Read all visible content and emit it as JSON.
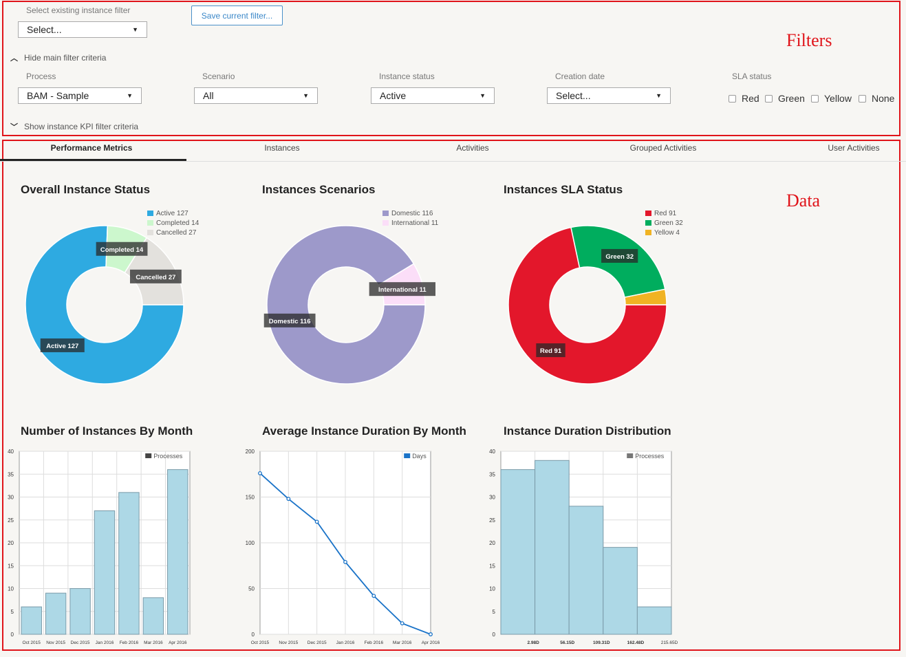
{
  "filters": {
    "existing_label": "Select existing instance filter",
    "existing_value": "Select...",
    "save_button": "Save current filter...",
    "hide_main": "Hide main filter criteria",
    "process_label": "Process",
    "process_value": "BAM - Sample",
    "scenario_label": "Scenario",
    "scenario_value": "All",
    "status_label": "Instance status",
    "status_value": "Active",
    "date_label": "Creation date",
    "date_value": "Select...",
    "sla_label": "SLA status",
    "sla_options": [
      "Red",
      "Green",
      "Yellow",
      "None"
    ],
    "show_kpi": "Show instance KPI filter criteria"
  },
  "annotations": {
    "filters": "Filters",
    "data": "Data"
  },
  "tabs": [
    "Performance Metrics",
    "Instances",
    "Activities",
    "Grouped Activities",
    "User Activities"
  ],
  "charts": {
    "overall_title": "Overall Instance Status",
    "scenarios_title": "Instances Scenarios",
    "sla_title": "Instances SLA Status",
    "by_month_title": "Number of Instances By Month",
    "avg_duration_title": "Average Instance Duration By Month",
    "distribution_title": "Instance Duration Distribution"
  },
  "chart_data": [
    {
      "type": "pie",
      "title": "Overall Instance Status",
      "categories": [
        "Active",
        "Completed",
        "Cancelled"
      ],
      "values": [
        127,
        14,
        27
      ],
      "legend": [
        "Active 127",
        "Completed 14",
        "Cancelled 27"
      ],
      "labels": [
        "Active 127",
        "Completed 14",
        "Cancelled 27"
      ],
      "colors": [
        "#2eaae1",
        "#ccf7cd",
        "#e3e1dd"
      ]
    },
    {
      "type": "pie",
      "title": "Instances Scenarios",
      "categories": [
        "Domestic",
        "International"
      ],
      "values": [
        116,
        11
      ],
      "legend": [
        "Domestic 116",
        "International 11"
      ],
      "labels": [
        "Domestic 116",
        "International 11"
      ],
      "colors": [
        "#9d99ca",
        "#fbdef8"
      ]
    },
    {
      "type": "pie",
      "title": "Instances SLA Status",
      "categories": [
        "Red",
        "Green",
        "Yellow"
      ],
      "values": [
        91,
        32,
        4
      ],
      "legend": [
        "Red 91",
        "Green 32",
        "Yellow 4"
      ],
      "labels": [
        "Red 91",
        "Green 32",
        ""
      ],
      "colors": [
        "#e3172b",
        "#00ad5e",
        "#f0b323"
      ]
    },
    {
      "type": "bar",
      "title": "Number of Instances By Month",
      "legend": "Processes",
      "categories": [
        "Oct 2015",
        "Nov 2015",
        "Dec 2015",
        "Jan 2016",
        "Feb 2016",
        "Mar 2016",
        "Apr 2016"
      ],
      "values": [
        6,
        9,
        10,
        27,
        31,
        8,
        36
      ],
      "ylim": [
        0,
        40
      ],
      "yticks": [
        0,
        5,
        10,
        15,
        20,
        25,
        30,
        35,
        40
      ]
    },
    {
      "type": "line",
      "title": "Average Instance Duration By Month",
      "legend": "Days",
      "categories": [
        "Oct 2015",
        "Nov 2015",
        "Dec 2015",
        "Jan 2016",
        "Feb 2016",
        "Mar 2016",
        "Apr 2016"
      ],
      "values": [
        176,
        148,
        123,
        79,
        42,
        12,
        0
      ],
      "ylim": [
        0,
        200
      ],
      "yticks": [
        0,
        50,
        100,
        150,
        200
      ]
    },
    {
      "type": "bar",
      "title": "Instance Duration Distribution",
      "legend": "Processes",
      "categories": [
        "2.98D",
        "56.15D",
        "109.31D",
        "162.48D",
        "215.65D"
      ],
      "values": [
        36,
        38,
        28,
        19,
        6
      ],
      "ylim": [
        0,
        40
      ],
      "yticks": [
        0,
        5,
        10,
        15,
        20,
        25,
        30,
        35,
        40
      ]
    }
  ]
}
